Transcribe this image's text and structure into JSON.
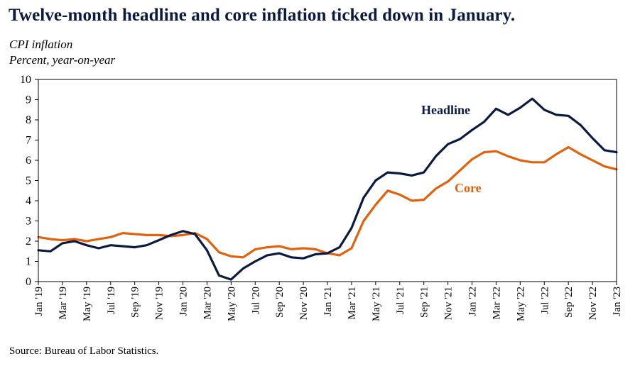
{
  "header": {
    "title": "Twelve-month headline and core inflation ticked down in January.",
    "subtitle1": "CPI inflation",
    "subtitle2": "Percent, year-on-year"
  },
  "footer": {
    "source": "Source: Bureau of Labor Statistics."
  },
  "colors": {
    "headline": "#0b1a3f",
    "core": "#e2620b",
    "axis": "#000000"
  },
  "chart_data": {
    "type": "line",
    "title": "Twelve-month headline and core inflation ticked down in January.",
    "ylabel": "Percent, year-on-year",
    "xlabel": "",
    "ylim": [
      0,
      10
    ],
    "yticks": [
      0,
      1,
      2,
      3,
      4,
      5,
      6,
      7,
      8,
      9,
      10
    ],
    "grid": false,
    "x": [
      "Jan '19",
      "Feb '19",
      "Mar '19",
      "Apr '19",
      "May '19",
      "Jun '19",
      "Jul '19",
      "Aug '19",
      "Sep '19",
      "Oct '19",
      "Nov '19",
      "Dec '19",
      "Jan '20",
      "Feb '20",
      "Mar '20",
      "Apr '20",
      "May '20",
      "Jun '20",
      "Jul '20",
      "Aug '20",
      "Sep '20",
      "Oct '20",
      "Nov '20",
      "Dec '20",
      "Jan '21",
      "Feb '21",
      "Mar '21",
      "Apr '21",
      "May '21",
      "Jun '21",
      "Jul '21",
      "Aug '21",
      "Sep '21",
      "Oct '21",
      "Nov '21",
      "Dec '21",
      "Jan '22",
      "Feb '22",
      "Mar '22",
      "Apr '22",
      "May '22",
      "Jun '22",
      "Jul '22",
      "Aug '22",
      "Sep '22",
      "Oct '22",
      "Nov '22",
      "Dec '22",
      "Jan '23"
    ],
    "xtick_labels": [
      "Jan '19",
      "Mar '19",
      "May '19",
      "Jul '19",
      "Sep '19",
      "Nov '19",
      "Jan '20",
      "Mar '20",
      "May '20",
      "Jul '20",
      "Sep '20",
      "Nov '20",
      "Jan '21",
      "Mar '21",
      "May '21",
      "Jul '21",
      "Sep '21",
      "Nov '21",
      "Jan '22",
      "Mar '22",
      "May '22",
      "Jul '22",
      "Sep '22",
      "Nov '22",
      "Jan '23"
    ],
    "series": [
      {
        "name": "Headline",
        "label_text": "Headline",
        "values": [
          1.55,
          1.5,
          1.9,
          2.0,
          1.8,
          1.65,
          1.8,
          1.75,
          1.7,
          1.8,
          2.05,
          2.3,
          2.5,
          2.35,
          1.55,
          0.3,
          0.1,
          0.65,
          1.0,
          1.3,
          1.4,
          1.2,
          1.15,
          1.35,
          1.4,
          1.7,
          2.65,
          4.15,
          5.0,
          5.4,
          5.35,
          5.25,
          5.4,
          6.2,
          6.8,
          7.05,
          7.5,
          7.9,
          8.55,
          8.25,
          8.6,
          9.05,
          8.5,
          8.25,
          8.2,
          7.75,
          7.1,
          6.5,
          6.4
        ]
      },
      {
        "name": "Core",
        "label_text": "Core",
        "values": [
          2.2,
          2.1,
          2.05,
          2.1,
          2.0,
          2.1,
          2.2,
          2.4,
          2.35,
          2.3,
          2.3,
          2.25,
          2.3,
          2.4,
          2.1,
          1.45,
          1.25,
          1.2,
          1.6,
          1.7,
          1.75,
          1.6,
          1.65,
          1.6,
          1.4,
          1.3,
          1.65,
          3.0,
          3.8,
          4.5,
          4.3,
          4.0,
          4.05,
          4.6,
          4.95,
          5.5,
          6.05,
          6.4,
          6.45,
          6.2,
          6.0,
          5.9,
          5.9,
          6.3,
          6.65,
          6.3,
          6.0,
          5.7,
          5.55
        ]
      }
    ]
  }
}
